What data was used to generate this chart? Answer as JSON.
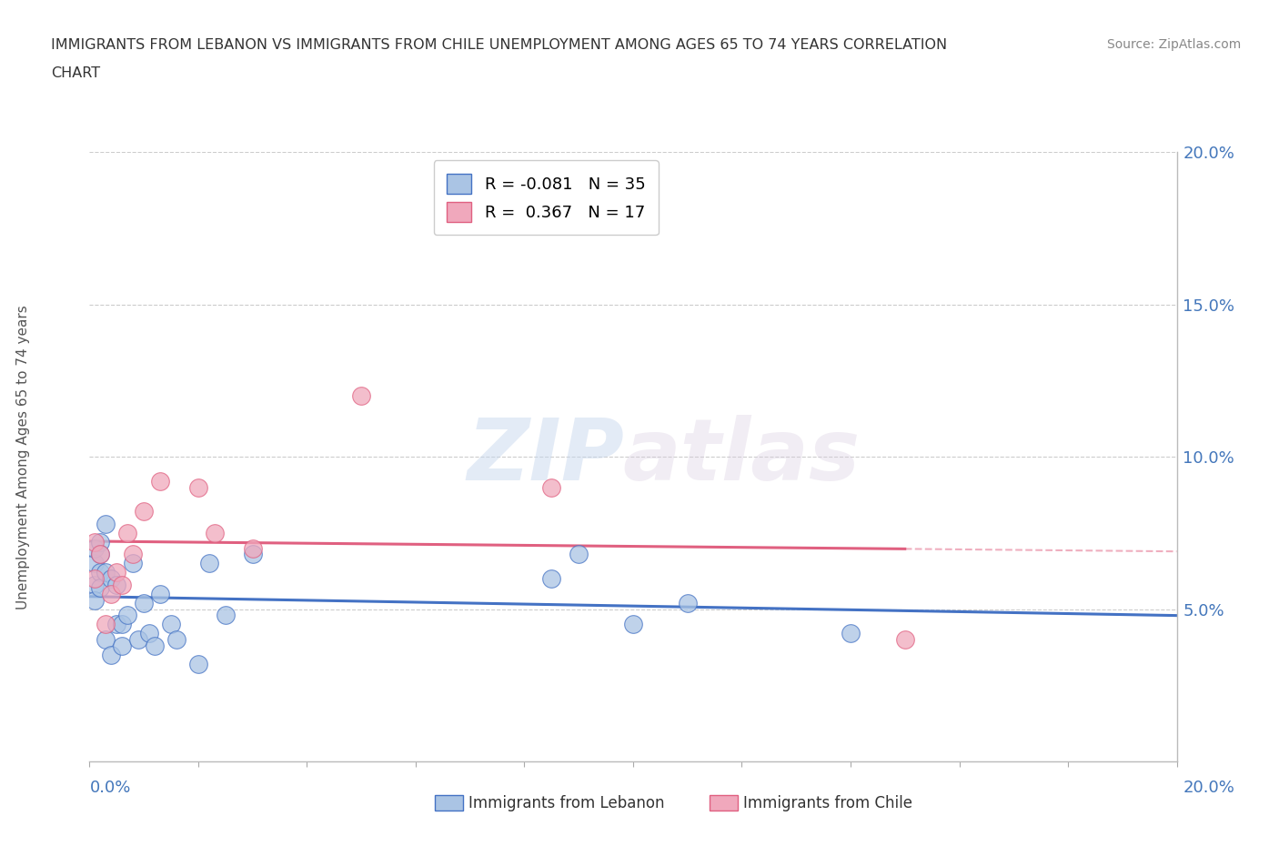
{
  "title_line1": "IMMIGRANTS FROM LEBANON VS IMMIGRANTS FROM CHILE UNEMPLOYMENT AMONG AGES 65 TO 74 YEARS CORRELATION",
  "title_line2": "CHART",
  "source": "Source: ZipAtlas.com",
  "ylabel": "Unemployment Among Ages 65 to 74 years",
  "xmin": 0.0,
  "xmax": 0.2,
  "ymin": 0.0,
  "ymax": 0.2,
  "lebanon_R": -0.081,
  "lebanon_N": 35,
  "chile_R": 0.367,
  "chile_N": 17,
  "lebanon_color": "#aac4e4",
  "chile_color": "#f0a8bc",
  "lebanon_line_color": "#4472c4",
  "chile_line_color": "#e06080",
  "ytick_labels": [
    "5.0%",
    "10.0%",
    "15.0%",
    "20.0%"
  ],
  "ytick_values": [
    0.05,
    0.1,
    0.15,
    0.2
  ],
  "legend_leb_label": "R = -0.081   N = 35",
  "legend_chile_label": "R =  0.367   N = 17",
  "bottom_legend_leb": "Immigrants from Lebanon",
  "bottom_legend_chile": "Immigrants from Chile",
  "lebanon_x": [
    0.001,
    0.001,
    0.001,
    0.001,
    0.002,
    0.002,
    0.002,
    0.002,
    0.003,
    0.003,
    0.003,
    0.004,
    0.004,
    0.005,
    0.005,
    0.006,
    0.006,
    0.007,
    0.008,
    0.009,
    0.01,
    0.011,
    0.012,
    0.013,
    0.015,
    0.016,
    0.02,
    0.022,
    0.025,
    0.03,
    0.085,
    0.09,
    0.1,
    0.11,
    0.14
  ],
  "lebanon_y": [
    0.058,
    0.065,
    0.053,
    0.07,
    0.072,
    0.062,
    0.057,
    0.068,
    0.04,
    0.078,
    0.062,
    0.035,
    0.06,
    0.045,
    0.058,
    0.045,
    0.038,
    0.048,
    0.065,
    0.04,
    0.052,
    0.042,
    0.038,
    0.055,
    0.045,
    0.04,
    0.032,
    0.065,
    0.048,
    0.068,
    0.06,
    0.068,
    0.045,
    0.052,
    0.042
  ],
  "chile_x": [
    0.001,
    0.001,
    0.002,
    0.003,
    0.004,
    0.005,
    0.006,
    0.007,
    0.008,
    0.01,
    0.013,
    0.02,
    0.023,
    0.03,
    0.05,
    0.085,
    0.15
  ],
  "chile_y": [
    0.06,
    0.072,
    0.068,
    0.045,
    0.055,
    0.062,
    0.058,
    0.075,
    0.068,
    0.082,
    0.092,
    0.09,
    0.075,
    0.07,
    0.12,
    0.09,
    0.04
  ]
}
